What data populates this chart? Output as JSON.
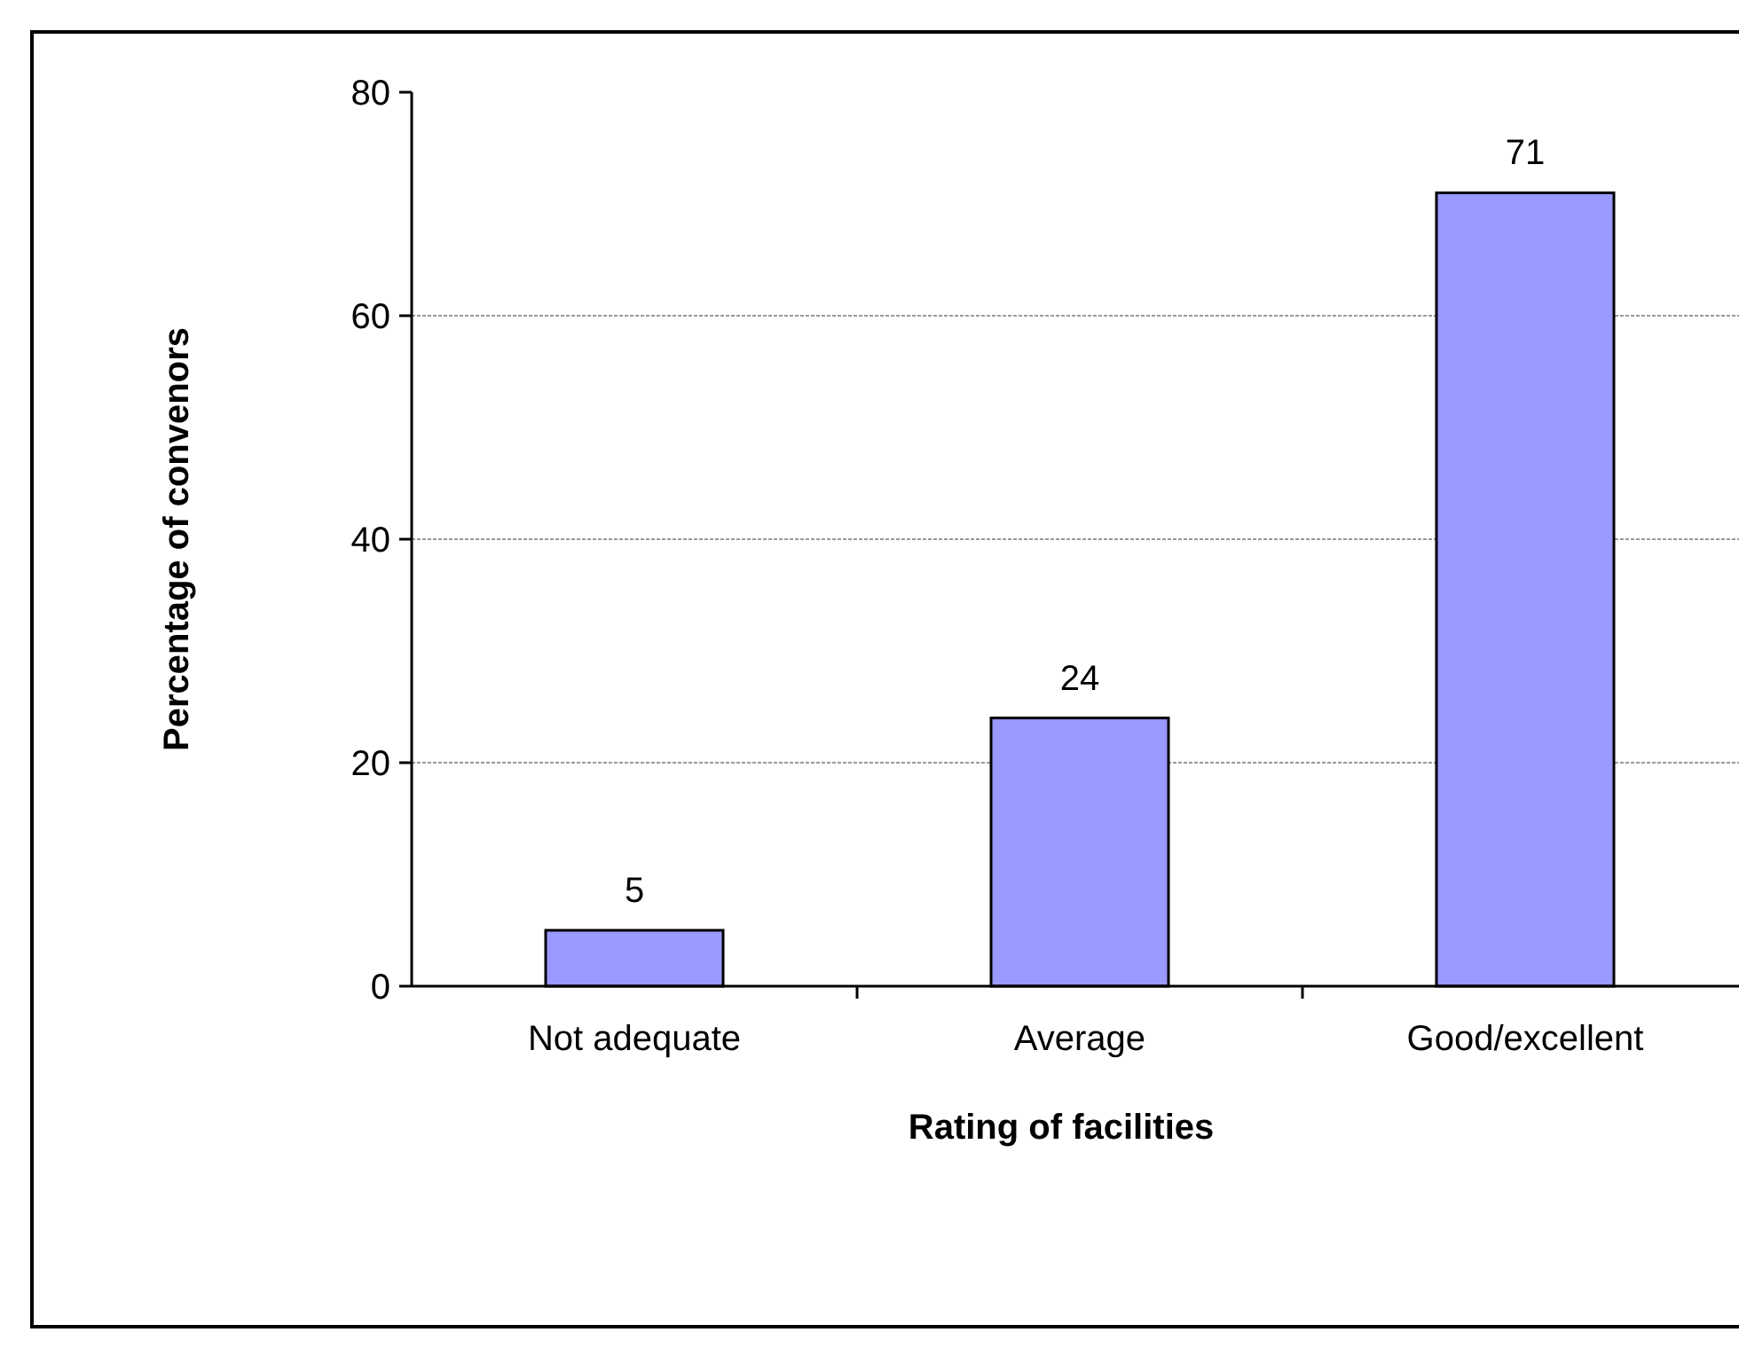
{
  "chart_data": {
    "type": "bar",
    "xlabel": "Rating of facilities",
    "ylabel": "Percentage of convenors",
    "categories": [
      "Not adequate",
      "Average",
      "Good/excellent"
    ],
    "values": [
      5,
      24,
      71
    ],
    "color": "#9999ff",
    "ylim": [
      0,
      80
    ],
    "yticks": [
      0,
      20,
      40,
      60,
      80
    ],
    "grid": "y",
    "data_labels": true
  }
}
